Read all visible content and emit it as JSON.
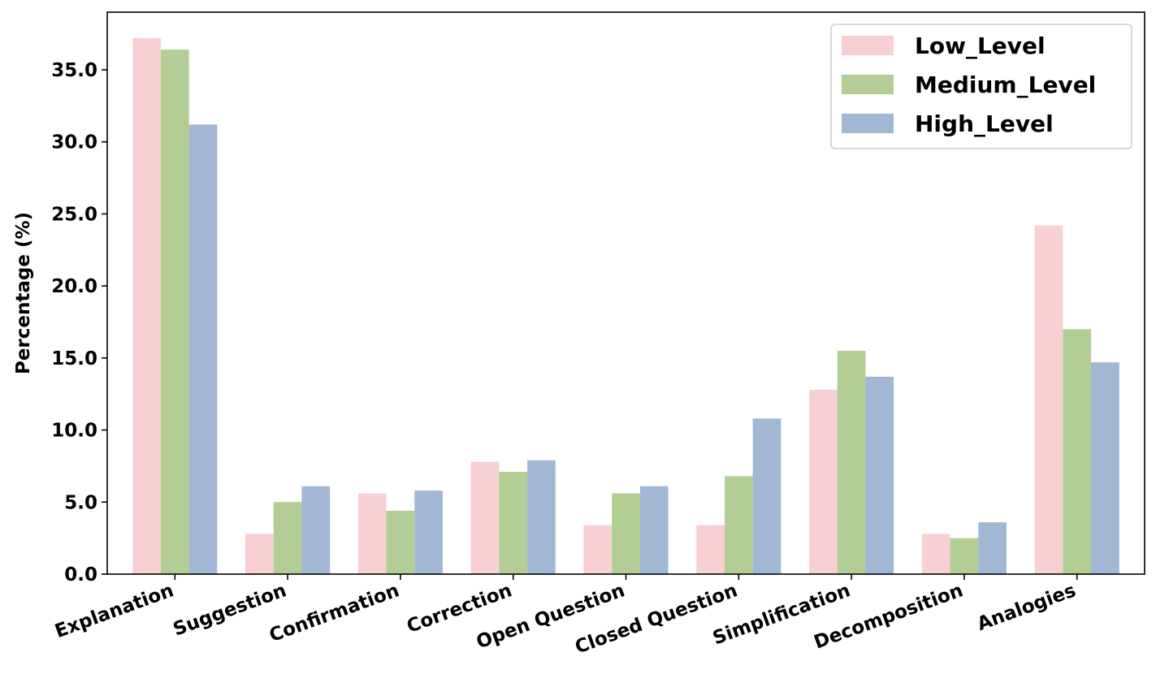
{
  "chart_data": {
    "type": "bar",
    "title": "",
    "xlabel": "",
    "ylabel": "Percentage (%)",
    "ylim": [
      0,
      39
    ],
    "yticks": [
      0,
      5,
      10,
      15,
      20,
      25,
      30,
      35
    ],
    "ytick_labels": [
      "0.0",
      "5.0",
      "10.0",
      "15.0",
      "20.0",
      "25.0",
      "30.0",
      "35.0"
    ],
    "grid": false,
    "legend_position": "top-right",
    "categories": [
      "Explanation",
      "Suggestion",
      "Confirmation",
      "Correction",
      "Open Question",
      "Closed Question",
      "Simplification",
      "Decomposition",
      "Analogies"
    ],
    "series": [
      {
        "name": "Low_Level",
        "color": "#f8d0d4",
        "values": [
          37.2,
          2.8,
          5.6,
          7.8,
          3.4,
          3.4,
          12.8,
          2.8,
          24.2
        ]
      },
      {
        "name": "Medium_Level",
        "color": "#b2ce94",
        "values": [
          36.4,
          5.0,
          4.4,
          7.1,
          5.6,
          6.8,
          15.5,
          2.5,
          17.0
        ]
      },
      {
        "name": "High_Level",
        "color": "#a2b7d4",
        "values": [
          31.2,
          6.1,
          5.8,
          7.9,
          6.1,
          10.8,
          13.7,
          3.6,
          14.7
        ]
      }
    ]
  }
}
